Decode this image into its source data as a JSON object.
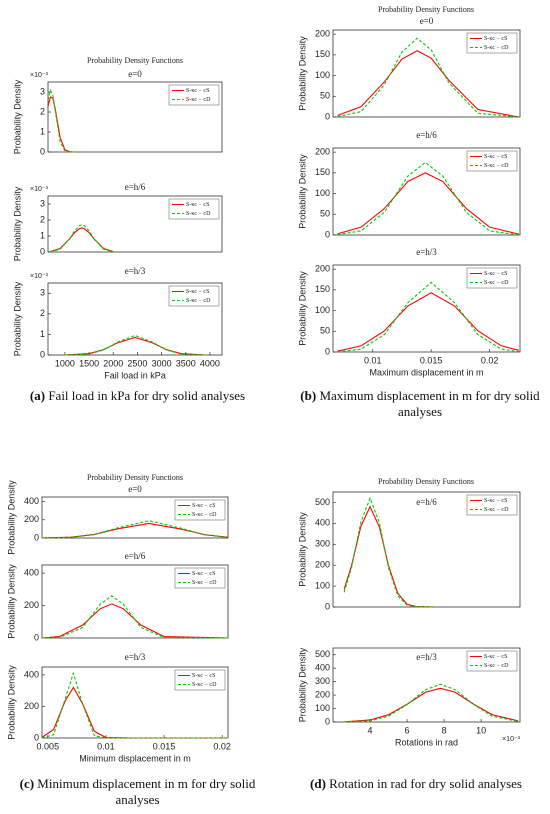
{
  "panels": [
    {
      "title": "Probability Density Functions",
      "caption": {
        "label": "(a)",
        "text": "Fail load in kPa for dry solid analyses"
      }
    },
    {
      "title": "Probability Density Functions",
      "caption": {
        "label": "(b)",
        "text": "Maximum displacement in m for dry solid analyses"
      }
    },
    {
      "title": "Probability Density Functions",
      "caption": {
        "label": "(c)",
        "text": "Minimum displacement in m for dry solid analyses"
      }
    },
    {
      "title": "Probability Density Functions",
      "caption": {
        "label": "(d)",
        "text": "Rotation in rad for dry solid analyses"
      }
    }
  ],
  "chart_data": [
    {
      "type": "line",
      "subtitle": "e=0",
      "ylabel": "Probability Density",
      "y_multiplier": "×10⁻³",
      "legend": "upper right",
      "x": [
        650,
        700,
        750,
        800,
        900,
        1000,
        1100,
        1200
      ],
      "xlim": [
        650,
        4250
      ],
      "ylim": [
        0,
        3.5
      ],
      "yticks": [
        0,
        1,
        2,
        3
      ],
      "series": [
        {
          "name": "S-κc − cS",
          "color": "#ff0000",
          "linestyle": "solid",
          "values": [
            2.29,
            2.75,
            2.7,
            2.15,
            0.73,
            0.11,
            0.01,
            0
          ]
        },
        {
          "name": "S-κc − cD",
          "color": "#00cc00",
          "linestyle": "dashed",
          "values": [
            2.59,
            3.08,
            2.86,
            2.07,
            0.51,
            0.05,
            0,
            0
          ]
        }
      ]
    },
    {
      "type": "line",
      "subtitle": "e=h/6",
      "ylabel": "Probability Density",
      "y_multiplier": "×10⁻³",
      "legend": "upper right",
      "x": [
        700,
        900,
        1100,
        1200,
        1300,
        1350,
        1400,
        1500,
        1600,
        1800,
        2000
      ],
      "xlim": [
        650,
        4250
      ],
      "ylim": [
        0,
        3.5
      ],
      "yticks": [
        0,
        1,
        2,
        3
      ],
      "series": [
        {
          "name": "S-κc − cS",
          "color": "#ff0000",
          "linestyle": "solid",
          "values": [
            0.03,
            0.22,
            0.83,
            1.21,
            1.46,
            1.5,
            1.46,
            1.21,
            0.83,
            0.22,
            0.03
          ]
        },
        {
          "name": "S-κc − cD",
          "color": "#00cc00",
          "linestyle": "dashed",
          "values": [
            0.01,
            0.17,
            0.84,
            1.32,
            1.65,
            1.7,
            1.65,
            1.32,
            0.84,
            0.17,
            0.01
          ]
        }
      ]
    },
    {
      "type": "line",
      "subtitle": "e=h/3",
      "ylabel": "Probability Density",
      "y_multiplier": "×10⁻³",
      "legend": "upper right",
      "xlabel": "Fail load in kPa",
      "x": [
        1000,
        1500,
        1800,
        2100,
        2450,
        2800,
        3100,
        3400,
        3900
      ],
      "xlim": [
        650,
        4250
      ],
      "ylim": [
        0,
        3.5
      ],
      "yticks": [
        0,
        1,
        2,
        3
      ],
      "xticks": [
        1000,
        1500,
        2000,
        2500,
        3000,
        3500,
        4000
      ],
      "series": [
        {
          "name": "S-κc − cS",
          "color": "#ff0000",
          "linestyle": "solid",
          "values": [
            0,
            0.07,
            0.26,
            0.6,
            0.85,
            0.6,
            0.26,
            0.07,
            0
          ]
        },
        {
          "name": "S-κc − cD",
          "color": "#00cc00",
          "linestyle": "dashed",
          "values": [
            0,
            0.05,
            0.24,
            0.64,
            0.95,
            0.64,
            0.24,
            0.05,
            0
          ]
        }
      ]
    },
    {
      "type": "line",
      "subtitle": "e=0",
      "ylabel": "Probability Density",
      "legend": "upper right",
      "x": [
        0.007,
        0.009,
        0.011,
        0.0125,
        0.0138,
        0.015,
        0.0165,
        0.019,
        0.0225
      ],
      "xlim": [
        0.0066,
        0.0226
      ],
      "ylim": [
        0,
        210
      ],
      "yticks": [
        0,
        50,
        100,
        150,
        200
      ],
      "series": [
        {
          "name": "S-κc − cS",
          "color": "#ff0000",
          "linestyle": "solid",
          "values": [
            4,
            25,
            85,
            140,
            160,
            142,
            89,
            18,
            0
          ]
        },
        {
          "name": "S-κc − cD",
          "color": "#00cc00",
          "linestyle": "dashed",
          "values": [
            1,
            13,
            78,
            157,
            190,
            162,
            83,
            9,
            0
          ]
        }
      ]
    },
    {
      "type": "line",
      "subtitle": "e=h/6",
      "ylabel": "Probability Density",
      "legend": "upper right",
      "x": [
        0.007,
        0.009,
        0.011,
        0.013,
        0.0145,
        0.016,
        0.018,
        0.02,
        0.0225
      ],
      "xlim": [
        0.0066,
        0.0226
      ],
      "ylim": [
        0,
        210
      ],
      "yticks": [
        0,
        50,
        100,
        150,
        200
      ],
      "series": [
        {
          "name": "S-κc − cS",
          "color": "#ff0000",
          "linestyle": "solid",
          "values": [
            3,
            19,
            64,
            129,
            150,
            129,
            64,
            19,
            2
          ]
        },
        {
          "name": "S-κc − cD",
          "color": "#00cc00",
          "linestyle": "dashed",
          "values": [
            1,
            10,
            55,
            142,
            175,
            142,
            55,
            10,
            0
          ]
        }
      ]
    },
    {
      "type": "line",
      "subtitle": "e=h/3",
      "ylabel": "Probability Density",
      "legend": "upper right",
      "xlabel": "Maximum displacement in m",
      "x": [
        0.007,
        0.009,
        0.011,
        0.013,
        0.015,
        0.017,
        0.019,
        0.021,
        0.0225
      ],
      "xlim": [
        0.0066,
        0.0226
      ],
      "ylim": [
        0,
        210
      ],
      "yticks": [
        0,
        50,
        100,
        150,
        200
      ],
      "xticks": [
        0.01,
        0.015,
        0.02
      ],
      "series": [
        {
          "name": "S-κc − cS",
          "color": "#ff0000",
          "linestyle": "solid",
          "values": [
            2,
            15,
            51,
            111,
            143,
            111,
            51,
            15,
            4
          ]
        },
        {
          "name": "S-κc − cD",
          "color": "#00cc00",
          "linestyle": "dashed",
          "values": [
            0,
            7,
            42,
            119,
            168,
            119,
            42,
            7,
            1
          ]
        }
      ]
    },
    {
      "type": "line",
      "subtitle": "e=0",
      "ylabel": "Probability Density",
      "legend": "upper right",
      "x": [
        0.0045,
        0.007,
        0.009,
        0.011,
        0.0137,
        0.0165,
        0.0185,
        0.0205
      ],
      "xlim": [
        0.0045,
        0.0205
      ],
      "ylim": [
        0,
        450
      ],
      "yticks": [
        0,
        200,
        400
      ],
      "series": [
        {
          "name": "S-κc − cS",
          "color": "#ff0000",
          "linestyle": "solid",
          "values": [
            1,
            9,
            39,
            101,
            160,
            97,
            37,
            8
          ]
        },
        {
          "name": "S-κc − cD",
          "color": "#00cc00",
          "linestyle": "dashed",
          "values": [
            0,
            7,
            37,
            111,
            190,
            106,
            34,
            6
          ]
        }
      ]
    },
    {
      "type": "line",
      "subtitle": "e=h/6",
      "ylabel": "Probability Density",
      "legend": "upper right",
      "x": [
        0.0045,
        0.006,
        0.008,
        0.0095,
        0.0105,
        0.0115,
        0.013,
        0.015,
        0.0205
      ],
      "xlim": [
        0.0045,
        0.0205
      ],
      "ylim": [
        0,
        450
      ],
      "yticks": [
        0,
        200,
        400
      ],
      "series": [
        {
          "name": "S-κc − cS",
          "color": "#ff0000",
          "linestyle": "solid",
          "values": [
            0,
            9,
            80,
            180,
            210,
            180,
            80,
            9,
            0
          ]
        },
        {
          "name": "S-κc − cD",
          "color": "#00cc00",
          "linestyle": "dashed",
          "values": [
            0,
            3,
            65,
            208,
            260,
            208,
            65,
            3,
            0
          ]
        }
      ]
    },
    {
      "type": "line",
      "subtitle": "e=h/3",
      "ylabel": "Probability Density",
      "legend": "upper right",
      "xlabel": "Minimum displacement in m",
      "x": [
        0.0045,
        0.0055,
        0.0065,
        0.0072,
        0.008,
        0.009,
        0.01,
        0.012,
        0.0205
      ],
      "xlim": [
        0.0045,
        0.0205
      ],
      "ylim": [
        0,
        450
      ],
      "yticks": [
        0,
        200,
        400
      ],
      "xticks": [
        0.005,
        0.01,
        0.015,
        0.02
      ],
      "series": [
        {
          "name": "S-κc − cS",
          "color": "#ff0000",
          "linestyle": "solid",
          "values": [
            4,
            54,
            236,
            320,
            216,
            43,
            3,
            0,
            0
          ]
        },
        {
          "name": "S-κc − cD",
          "color": "#00cc00",
          "linestyle": "dashed",
          "values": [
            0,
            21,
            249,
            410,
            214,
            15,
            0,
            0,
            0
          ]
        }
      ]
    },
    {
      "type": "line",
      "subtitle": "e=h/6",
      "ylabel": "Probability Density",
      "legend": "upper right",
      "x": [
        2.6,
        3,
        3.5,
        4,
        4.5,
        5,
        5.5,
        6,
        6.5,
        7.5
      ],
      "xlim": [
        2,
        12.1
      ],
      "ylim": [
        0,
        550
      ],
      "yticks": [
        0,
        100,
        200,
        300,
        400,
        500
      ],
      "series": [
        {
          "name": "S-κc − cS",
          "color": "#ff0000",
          "linestyle": "solid",
          "values": [
            84,
            197,
            384,
            480,
            384,
            197,
            65,
            13,
            2,
            0
          ]
        },
        {
          "name": "S-κc − cD",
          "color": "#00cc00",
          "linestyle": "dashed",
          "values": [
            70,
            187,
            405,
            520,
            405,
            187,
            53,
            9,
            1,
            0
          ]
        }
      ]
    },
    {
      "type": "line",
      "subtitle": "e=h/3",
      "ylabel": "Probability Density",
      "legend": "upper right",
      "xlabel": "Rotations in rad",
      "x_multiplier": "×10⁻³",
      "x": [
        2.6,
        4,
        5,
        6,
        7,
        7.8,
        8.6,
        9.6,
        10.6,
        12
      ],
      "xlim": [
        2,
        12.1
      ],
      "ylim": [
        0,
        550
      ],
      "yticks": [
        0,
        100,
        200,
        300,
        400,
        500
      ],
      "xticks": [
        4,
        6,
        8,
        10
      ],
      "series": [
        {
          "name": "S-κc − cS",
          "color": "#ff0000",
          "linestyle": "solid",
          "values": [
            1,
            15,
            54,
            132,
            221,
            250,
            221,
            132,
            54,
            8
          ]
        },
        {
          "name": "S-κc − cD",
          "color": "#00cc00",
          "linestyle": "dashed",
          "values": [
            0,
            9,
            43,
            130,
            240,
            280,
            240,
            130,
            43,
            4
          ]
        }
      ]
    }
  ]
}
